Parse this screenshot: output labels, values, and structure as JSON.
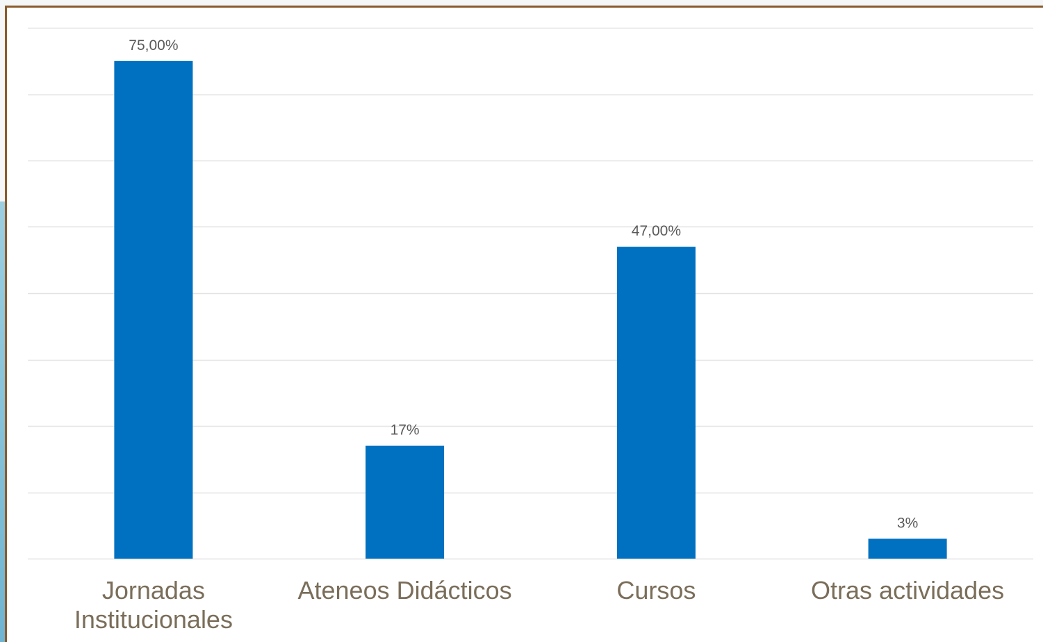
{
  "colors": {
    "bar": "#0070c0",
    "grid": "#e3e3e3",
    "frame": "#8b5a2b",
    "data_label": "#595959",
    "category_label": "#7a6e5a"
  },
  "chart_data": {
    "type": "bar",
    "categories": [
      [
        "Jornadas",
        "Institucionales"
      ],
      [
        "Ateneos Didácticos"
      ],
      [
        "Cursos"
      ],
      [
        "Otras actividades"
      ]
    ],
    "values": [
      75,
      17,
      47,
      3
    ],
    "data_labels": [
      "75,00%",
      "17%",
      "47,00%",
      "3%"
    ],
    "ylim": [
      0,
      80
    ],
    "y_gridline_step": 10,
    "grid": true,
    "legend": "none",
    "title": "",
    "xlabel": "",
    "ylabel": ""
  }
}
